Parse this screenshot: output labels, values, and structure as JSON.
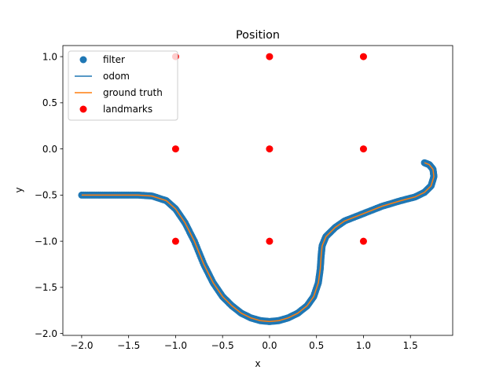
{
  "chart_data": {
    "type": "scatter",
    "title": "Position",
    "xlabel": "x",
    "ylabel": "y",
    "xlim": [
      -2.2,
      1.95
    ],
    "ylim": [
      -2.02,
      1.12
    ],
    "xticks": [
      -2.0,
      -1.5,
      -1.0,
      -0.5,
      0.0,
      0.5,
      1.0,
      1.5
    ],
    "xtick_labels": [
      "−2.0",
      "−1.5",
      "−1.0",
      "−0.5",
      "0.0",
      "0.5",
      "1.0",
      "1.5"
    ],
    "yticks": [
      1.0,
      0.5,
      0.0,
      -0.5,
      -1.0,
      -1.5,
      -2.0
    ],
    "ytick_labels": [
      "1.0",
      "0.5",
      "0.0",
      "−0.5",
      "−1.0",
      "−1.5",
      "−2.0"
    ],
    "grid": false,
    "legend_position": "top-left",
    "trajectory": {
      "x": [
        -2.0,
        -1.8,
        -1.6,
        -1.4,
        -1.25,
        -1.1,
        -1.0,
        -0.9,
        -0.8,
        -0.7,
        -0.6,
        -0.5,
        -0.4,
        -0.3,
        -0.2,
        -0.1,
        0.0,
        0.1,
        0.2,
        0.3,
        0.4,
        0.47,
        0.52,
        0.54,
        0.55,
        0.56,
        0.6,
        0.7,
        0.8,
        1.0,
        1.2,
        1.4,
        1.55,
        1.65,
        1.72,
        1.75,
        1.74,
        1.7,
        1.65
      ],
      "y": [
        -0.5,
        -0.5,
        -0.5,
        -0.5,
        -0.51,
        -0.56,
        -0.65,
        -0.8,
        -1.0,
        -1.25,
        -1.45,
        -1.6,
        -1.7,
        -1.78,
        -1.83,
        -1.86,
        -1.87,
        -1.86,
        -1.83,
        -1.78,
        -1.7,
        -1.6,
        -1.45,
        -1.3,
        -1.15,
        -1.05,
        -0.95,
        -0.85,
        -0.78,
        -0.7,
        -0.62,
        -0.56,
        -0.52,
        -0.47,
        -0.4,
        -0.3,
        -0.22,
        -0.17,
        -0.15
      ]
    },
    "series": [
      {
        "name": "filter",
        "kind": "scatter",
        "color": "#1f77b4"
      },
      {
        "name": "odom",
        "kind": "line",
        "color": "#1f77b4"
      },
      {
        "name": "ground truth",
        "kind": "line",
        "color": "#ff7f0e"
      },
      {
        "name": "landmarks",
        "kind": "scatter",
        "color": "#ff0000",
        "x": [
          -1,
          0,
          1,
          -1,
          0,
          1,
          -1,
          0,
          1
        ],
        "y": [
          1,
          1,
          1,
          0,
          0,
          0,
          -1,
          -1,
          -1
        ]
      }
    ]
  }
}
